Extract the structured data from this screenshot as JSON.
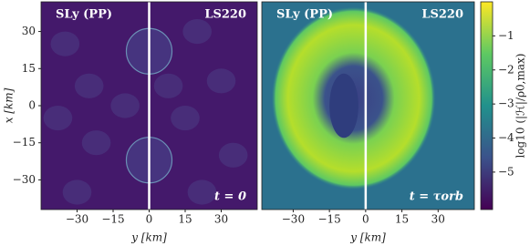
{
  "chart_data": [
    {
      "type": "heatmap",
      "left_label": "SLy (PP)",
      "right_label": "LS220",
      "annotation": "t = 0",
      "xlabel": "y [km]",
      "ylabel": "x [km]",
      "xlim": [
        -45,
        45
      ],
      "ylim": [
        -42,
        42
      ],
      "xticks": [
        {
          "value": -30,
          "label": "−30"
        },
        {
          "value": -15,
          "label": "−15"
        },
        0,
        15,
        30
      ],
      "yticks": [
        30,
        15,
        0,
        {
          "value": -15,
          "label": "−15"
        },
        {
          "value": -30,
          "label": "−30"
        }
      ]
    },
    {
      "type": "heatmap",
      "left_label": "SLy (PP)",
      "right_label": "LS220",
      "annotation": "t = τorb",
      "xlabel": "y [km]",
      "xlim": [
        -43,
        45
      ],
      "ylim": [
        -42,
        42
      ],
      "xticks": [
        {
          "value": -30,
          "label": "−30"
        },
        {
          "value": -15,
          "label": "−15"
        },
        0,
        15,
        30
      ],
      "colorbar": {
        "label": "log10 (|ℋ|/ρ0,max)",
        "colormap": "viridis",
        "clim": [
          -6.1,
          0
        ],
        "ticks": [
          {
            "value": -1,
            "label": "−1"
          },
          {
            "value": -2,
            "label": "−2"
          },
          {
            "value": -3,
            "label": "−3"
          },
          {
            "value": -4,
            "label": "−4"
          },
          {
            "value": -5,
            "label": "−5"
          }
        ]
      }
    }
  ]
}
